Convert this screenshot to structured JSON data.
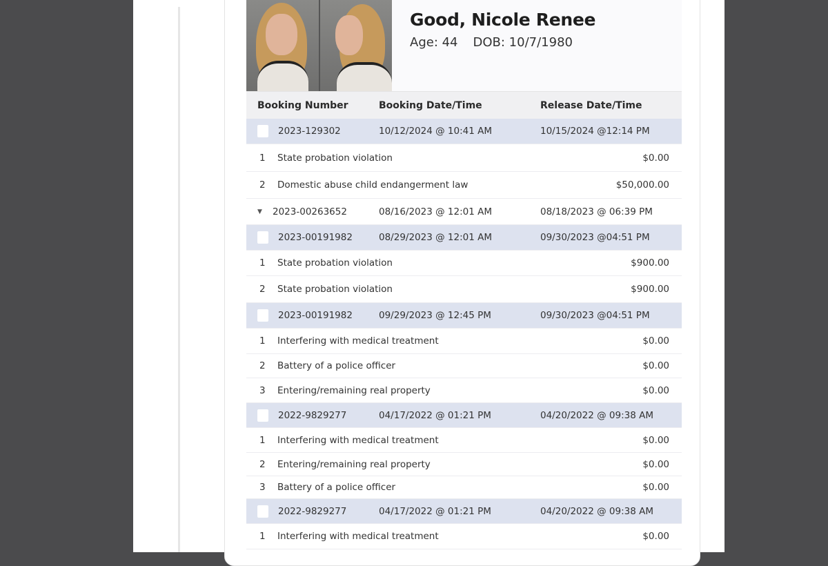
{
  "person": {
    "name": "Good, Nicole Renee",
    "age_label": "Age: 44",
    "dob_label": "DOB: 10/7/1980"
  },
  "table": {
    "headers": [
      "Booking Number",
      "Booking Date/Time",
      "Release Date/Time"
    ],
    "bookings": [
      {
        "number": "2023-129302",
        "booked": "10/12/2024 @ 10:41 AM",
        "released": "10/15/2024 @12:14 PM",
        "expanded": false,
        "charges": [
          {
            "n": "1",
            "desc": "State probation violation",
            "bond": "$0.00"
          },
          {
            "n": "2",
            "desc": "Domestic abuse child endangerment law",
            "bond": "$50,000.00"
          }
        ]
      },
      {
        "number": "2023-00263652",
        "booked": "08/16/2023 @ 12:01 AM",
        "released": "08/18/2023 @ 06:39 PM",
        "expanded": true,
        "charges": []
      },
      {
        "number": "2023-00191982",
        "booked": "08/29/2023 @ 12:01 AM",
        "released": "09/30/2023 @04:51 PM",
        "expanded": false,
        "charges": [
          {
            "n": "1",
            "desc": "State probation violation",
            "bond": "$900.00"
          },
          {
            "n": "2",
            "desc": "State probation violation",
            "bond": "$900.00"
          }
        ]
      },
      {
        "number": "2023-00191982",
        "booked": "09/29/2023 @ 12:45 PM",
        "released": "09/30/2023 @04:51 PM",
        "expanded": false,
        "charges": [
          {
            "n": "1",
            "desc": "Interfering with medical treatment",
            "bond": "$0.00"
          },
          {
            "n": "2",
            "desc": "Battery of a police officer",
            "bond": "$0.00"
          },
          {
            "n": "3",
            "desc": "Entering/remaining real property",
            "bond": "$0.00"
          }
        ]
      },
      {
        "number": "2022-9829277",
        "booked": "04/17/2022 @ 01:21 PM",
        "released": "04/20/2022 @ 09:38 AM",
        "expanded": false,
        "charges": [
          {
            "n": "1",
            "desc": "Interfering with medical treatment",
            "bond": "$0.00"
          },
          {
            "n": "2",
            "desc": "Entering/remaining real property",
            "bond": "$0.00"
          },
          {
            "n": "3",
            "desc": "Battery of a police officer",
            "bond": "$0.00"
          }
        ]
      },
      {
        "number": "2022-9829277",
        "booked": "04/17/2022 @ 01:21 PM",
        "released": "04/20/2022 @ 09:38 AM",
        "expanded": false,
        "charges": [
          {
            "n": "1",
            "desc": "Interfering with medical treatment",
            "bond": "$0.00"
          }
        ]
      }
    ]
  },
  "colors": {
    "booking_row": "#dde2ef",
    "header_row": "#f0f0f2",
    "background": "#4b4b4d"
  }
}
